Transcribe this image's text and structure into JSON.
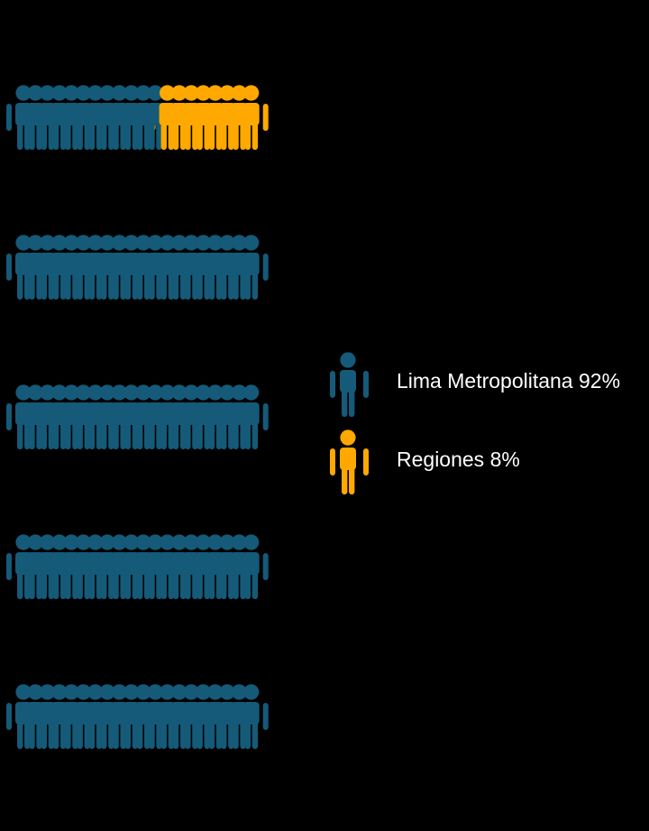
{
  "chart_data": {
    "type": "pictogram",
    "total_icons": 100,
    "rows": 5,
    "icons_per_row": 20,
    "series": [
      {
        "name": "Lima Metropolitana 92%",
        "value": 92,
        "color": "#155a78",
        "icon": "person-icon"
      },
      {
        "name": "Regiones 8%",
        "value": 8,
        "color": "#ffa800",
        "icon": "person-icon"
      }
    ],
    "legend_position": "right"
  }
}
